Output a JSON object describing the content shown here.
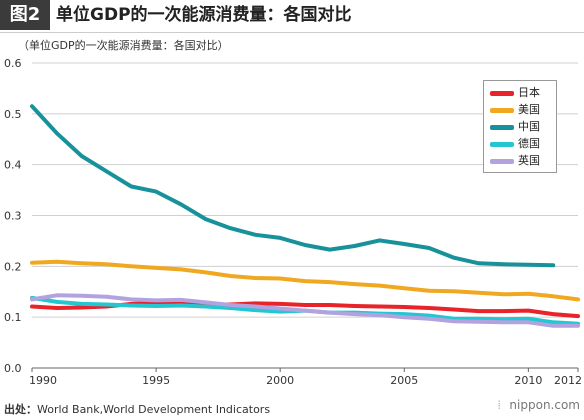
{
  "header": {
    "badge": "图2",
    "title": "单位GDP的一次能源消费量：各国对比"
  },
  "unit_note": "（单位GDP的一次能源消费量：各国对比）",
  "footer": {
    "source_label": "出处：",
    "source_text": "World Bank,World Development Indicators",
    "brand": "nippon.com",
    "brand_icon": "bars-icon"
  },
  "chart_data": {
    "type": "line",
    "title": "",
    "xlabel": "",
    "ylabel": "",
    "xlim": [
      1990,
      2012
    ],
    "ylim": [
      0,
      0.6
    ],
    "xticks": [
      "1990",
      "1995",
      "2000",
      "2005",
      "2010",
      "2012"
    ],
    "yticks": [
      "0.0",
      "0.1",
      "0.2",
      "0.3",
      "0.4",
      "0.5",
      "0.6"
    ],
    "grid": "horizontal",
    "legend_position": "top-right",
    "x": [
      1990,
      1991,
      1992,
      1993,
      1994,
      1995,
      1996,
      1997,
      1998,
      1999,
      2000,
      2001,
      2002,
      2003,
      2004,
      2005,
      2006,
      2007,
      2008,
      2009,
      2010,
      2011,
      2012
    ],
    "series": [
      {
        "name": "日本",
        "color": "#e8232a",
        "values": [
          0.121,
          0.118,
          0.119,
          0.121,
          0.126,
          0.128,
          0.127,
          0.125,
          0.125,
          0.127,
          0.126,
          0.124,
          0.124,
          0.122,
          0.121,
          0.12,
          0.118,
          0.115,
          0.112,
          0.112,
          0.113,
          0.106,
          0.102
        ]
      },
      {
        "name": "美国",
        "color": "#f0a821",
        "values": [
          0.207,
          0.209,
          0.206,
          0.204,
          0.2,
          0.197,
          0.194,
          0.188,
          0.181,
          0.177,
          0.176,
          0.171,
          0.169,
          0.165,
          0.162,
          0.157,
          0.152,
          0.151,
          0.148,
          0.145,
          0.146,
          0.141,
          0.135
        ]
      },
      {
        "name": "中国",
        "color": "#17919a",
        "values": [
          0.515,
          0.462,
          0.417,
          0.387,
          0.357,
          0.347,
          0.322,
          0.293,
          0.275,
          0.262,
          0.256,
          0.242,
          0.233,
          0.24,
          0.251,
          0.244,
          0.236,
          0.217,
          0.206,
          0.204,
          0.203,
          0.202,
          null
        ]
      },
      {
        "name": "德国",
        "color": "#24c6d1",
        "values": [
          0.138,
          0.13,
          0.126,
          0.125,
          0.123,
          0.122,
          0.123,
          0.121,
          0.118,
          0.114,
          0.111,
          0.113,
          0.109,
          0.109,
          0.107,
          0.106,
          0.103,
          0.097,
          0.097,
          0.096,
          0.097,
          0.09,
          0.087
        ]
      },
      {
        "name": "英国",
        "color": "#b2a2e0",
        "values": [
          0.135,
          0.143,
          0.142,
          0.14,
          0.135,
          0.133,
          0.134,
          0.129,
          0.124,
          0.121,
          0.117,
          0.113,
          0.109,
          0.106,
          0.104,
          0.1,
          0.097,
          0.092,
          0.091,
          0.09,
          0.09,
          0.083,
          0.083
        ]
      }
    ]
  }
}
